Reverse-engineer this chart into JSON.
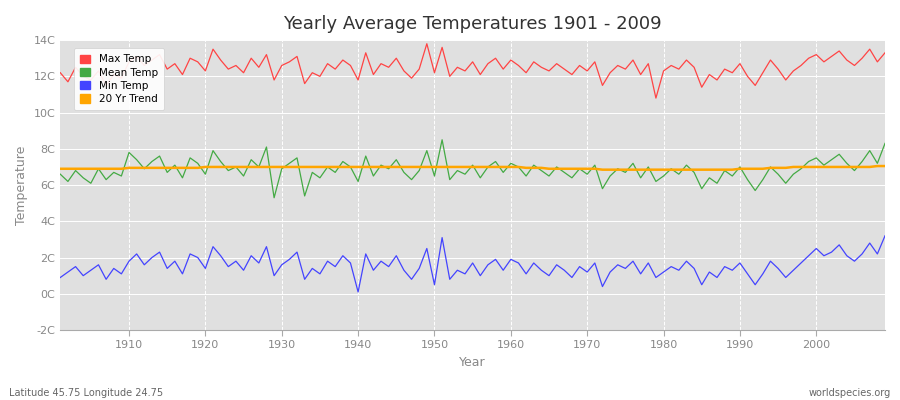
{
  "title": "Yearly Average Temperatures 1901 - 2009",
  "xlabel": "Year",
  "ylabel": "Temperature",
  "subtitle_left": "Latitude 45.75 Longitude 24.75",
  "subtitle_right": "worldspecies.org",
  "years": [
    1901,
    1902,
    1903,
    1904,
    1905,
    1906,
    1907,
    1908,
    1909,
    1910,
    1911,
    1912,
    1913,
    1914,
    1915,
    1916,
    1917,
    1918,
    1919,
    1920,
    1921,
    1922,
    1923,
    1924,
    1925,
    1926,
    1927,
    1928,
    1929,
    1930,
    1931,
    1932,
    1933,
    1934,
    1935,
    1936,
    1937,
    1938,
    1939,
    1940,
    1941,
    1942,
    1943,
    1944,
    1945,
    1946,
    1947,
    1948,
    1949,
    1950,
    1951,
    1952,
    1953,
    1954,
    1955,
    1956,
    1957,
    1958,
    1959,
    1960,
    1961,
    1962,
    1963,
    1964,
    1965,
    1966,
    1967,
    1968,
    1969,
    1970,
    1971,
    1972,
    1973,
    1974,
    1975,
    1976,
    1977,
    1978,
    1979,
    1980,
    1981,
    1982,
    1983,
    1984,
    1985,
    1986,
    1987,
    1988,
    1989,
    1990,
    1991,
    1992,
    1993,
    1994,
    1995,
    1996,
    1997,
    1998,
    1999,
    2000,
    2001,
    2002,
    2003,
    2004,
    2005,
    2006,
    2007,
    2008,
    2009
  ],
  "max_temp": [
    12.2,
    11.7,
    12.5,
    12.0,
    11.8,
    12.3,
    11.5,
    12.1,
    11.9,
    12.8,
    13.1,
    12.6,
    12.9,
    13.2,
    12.4,
    12.7,
    12.1,
    13.0,
    12.8,
    12.3,
    13.5,
    12.9,
    12.4,
    12.6,
    12.2,
    13.0,
    12.5,
    13.2,
    11.8,
    12.6,
    12.8,
    13.1,
    11.6,
    12.2,
    12.0,
    12.7,
    12.4,
    12.9,
    12.6,
    11.8,
    13.3,
    12.1,
    12.7,
    12.5,
    13.0,
    12.3,
    11.9,
    12.4,
    13.8,
    12.2,
    13.6,
    12.0,
    12.5,
    12.3,
    12.8,
    12.1,
    12.7,
    13.0,
    12.4,
    12.9,
    12.6,
    12.2,
    12.8,
    12.5,
    12.3,
    12.7,
    12.4,
    12.1,
    12.6,
    12.3,
    12.8,
    11.5,
    12.2,
    12.6,
    12.4,
    12.9,
    12.1,
    12.7,
    10.8,
    12.3,
    12.6,
    12.4,
    12.9,
    12.5,
    11.4,
    12.1,
    11.8,
    12.4,
    12.2,
    12.7,
    12.0,
    11.5,
    12.2,
    12.9,
    12.4,
    11.8,
    12.3,
    12.6,
    13.0,
    13.2,
    12.8,
    13.1,
    13.4,
    12.9,
    12.6,
    13.0,
    13.5,
    12.8,
    13.3
  ],
  "mean_temp": [
    6.6,
    6.2,
    6.8,
    6.4,
    6.1,
    6.9,
    6.3,
    6.7,
    6.5,
    7.8,
    7.4,
    6.9,
    7.3,
    7.6,
    6.7,
    7.1,
    6.4,
    7.5,
    7.2,
    6.6,
    7.9,
    7.3,
    6.8,
    7.0,
    6.5,
    7.4,
    7.0,
    8.1,
    5.3,
    6.9,
    7.2,
    7.5,
    5.4,
    6.7,
    6.4,
    7.0,
    6.7,
    7.3,
    7.0,
    6.2,
    7.6,
    6.5,
    7.1,
    6.9,
    7.4,
    6.7,
    6.3,
    6.8,
    7.9,
    6.5,
    8.5,
    6.3,
    6.8,
    6.6,
    7.1,
    6.4,
    7.0,
    7.3,
    6.7,
    7.2,
    7.0,
    6.5,
    7.1,
    6.8,
    6.5,
    7.0,
    6.7,
    6.4,
    6.9,
    6.6,
    7.1,
    5.8,
    6.5,
    6.9,
    6.7,
    7.2,
    6.4,
    7.0,
    6.2,
    6.5,
    6.9,
    6.6,
    7.1,
    6.7,
    5.8,
    6.4,
    6.1,
    6.8,
    6.5,
    7.0,
    6.3,
    5.7,
    6.3,
    7.0,
    6.6,
    6.1,
    6.6,
    6.9,
    7.3,
    7.5,
    7.1,
    7.4,
    7.7,
    7.2,
    6.8,
    7.3,
    7.9,
    7.2,
    8.3
  ],
  "min_temp": [
    0.9,
    1.2,
    1.5,
    1.0,
    1.3,
    1.6,
    0.8,
    1.4,
    1.1,
    1.8,
    2.2,
    1.6,
    2.0,
    2.3,
    1.4,
    1.8,
    1.1,
    2.2,
    2.0,
    1.4,
    2.6,
    2.1,
    1.5,
    1.8,
    1.3,
    2.1,
    1.7,
    2.6,
    1.0,
    1.6,
    1.9,
    2.3,
    0.8,
    1.4,
    1.1,
    1.8,
    1.5,
    2.1,
    1.7,
    0.1,
    2.2,
    1.3,
    1.8,
    1.5,
    2.1,
    1.3,
    0.8,
    1.4,
    2.5,
    0.5,
    3.1,
    0.8,
    1.3,
    1.1,
    1.7,
    1.0,
    1.6,
    1.9,
    1.3,
    1.9,
    1.7,
    1.1,
    1.7,
    1.3,
    1.0,
    1.6,
    1.3,
    0.9,
    1.5,
    1.2,
    1.7,
    0.4,
    1.2,
    1.6,
    1.4,
    1.8,
    1.1,
    1.7,
    0.9,
    1.2,
    1.5,
    1.3,
    1.8,
    1.4,
    0.5,
    1.2,
    0.9,
    1.5,
    1.3,
    1.7,
    1.1,
    0.5,
    1.1,
    1.8,
    1.4,
    0.9,
    1.3,
    1.7,
    2.1,
    2.5,
    2.1,
    2.3,
    2.7,
    2.1,
    1.8,
    2.2,
    2.8,
    2.2,
    3.2
  ],
  "trend": [
    6.9,
    6.9,
    6.9,
    6.9,
    6.9,
    6.9,
    6.9,
    6.9,
    6.9,
    6.95,
    6.95,
    6.95,
    6.95,
    6.95,
    6.95,
    6.95,
    6.95,
    6.95,
    6.95,
    7.0,
    7.0,
    7.0,
    7.0,
    7.0,
    7.0,
    7.0,
    7.0,
    7.0,
    7.0,
    7.0,
    7.0,
    7.0,
    7.0,
    7.0,
    7.0,
    7.0,
    7.0,
    7.0,
    7.0,
    7.0,
    7.0,
    7.0,
    7.0,
    7.0,
    7.0,
    7.0,
    7.0,
    7.0,
    7.0,
    7.0,
    7.0,
    7.0,
    7.0,
    7.0,
    7.0,
    7.0,
    7.0,
    7.0,
    7.0,
    7.0,
    7.0,
    6.95,
    6.95,
    6.95,
    6.9,
    6.9,
    6.9,
    6.9,
    6.9,
    6.9,
    6.9,
    6.85,
    6.85,
    6.85,
    6.85,
    6.85,
    6.85,
    6.85,
    6.85,
    6.85,
    6.85,
    6.85,
    6.85,
    6.85,
    6.85,
    6.85,
    6.85,
    6.85,
    6.85,
    6.9,
    6.9,
    6.9,
    6.9,
    6.95,
    6.95,
    6.95,
    7.0,
    7.0,
    7.0,
    7.0,
    7.0,
    7.0,
    7.0,
    7.0,
    7.0,
    7.0,
    7.0,
    7.05,
    7.05
  ],
  "max_color": "#FF4444",
  "mean_color": "#44AA44",
  "min_color": "#4444FF",
  "trend_color": "#FFA500",
  "fig_bg_color": "#FFFFFF",
  "plot_bg_color": "#E0E0E0",
  "grid_color": "#FFFFFF",
  "tick_color": "#888888",
  "label_color": "#888888",
  "ylim": [
    -2,
    14
  ],
  "yticks": [
    -2,
    0,
    2,
    4,
    6,
    8,
    10,
    12,
    14
  ],
  "ytick_labels": [
    "-2C",
    "0C",
    "2C",
    "4C",
    "6C",
    "8C",
    "10C",
    "12C",
    "14C"
  ],
  "xtick_start": 1910,
  "xtick_end": 2010,
  "xtick_step": 10,
  "xlim_left": 1901,
  "xlim_right": 2009
}
